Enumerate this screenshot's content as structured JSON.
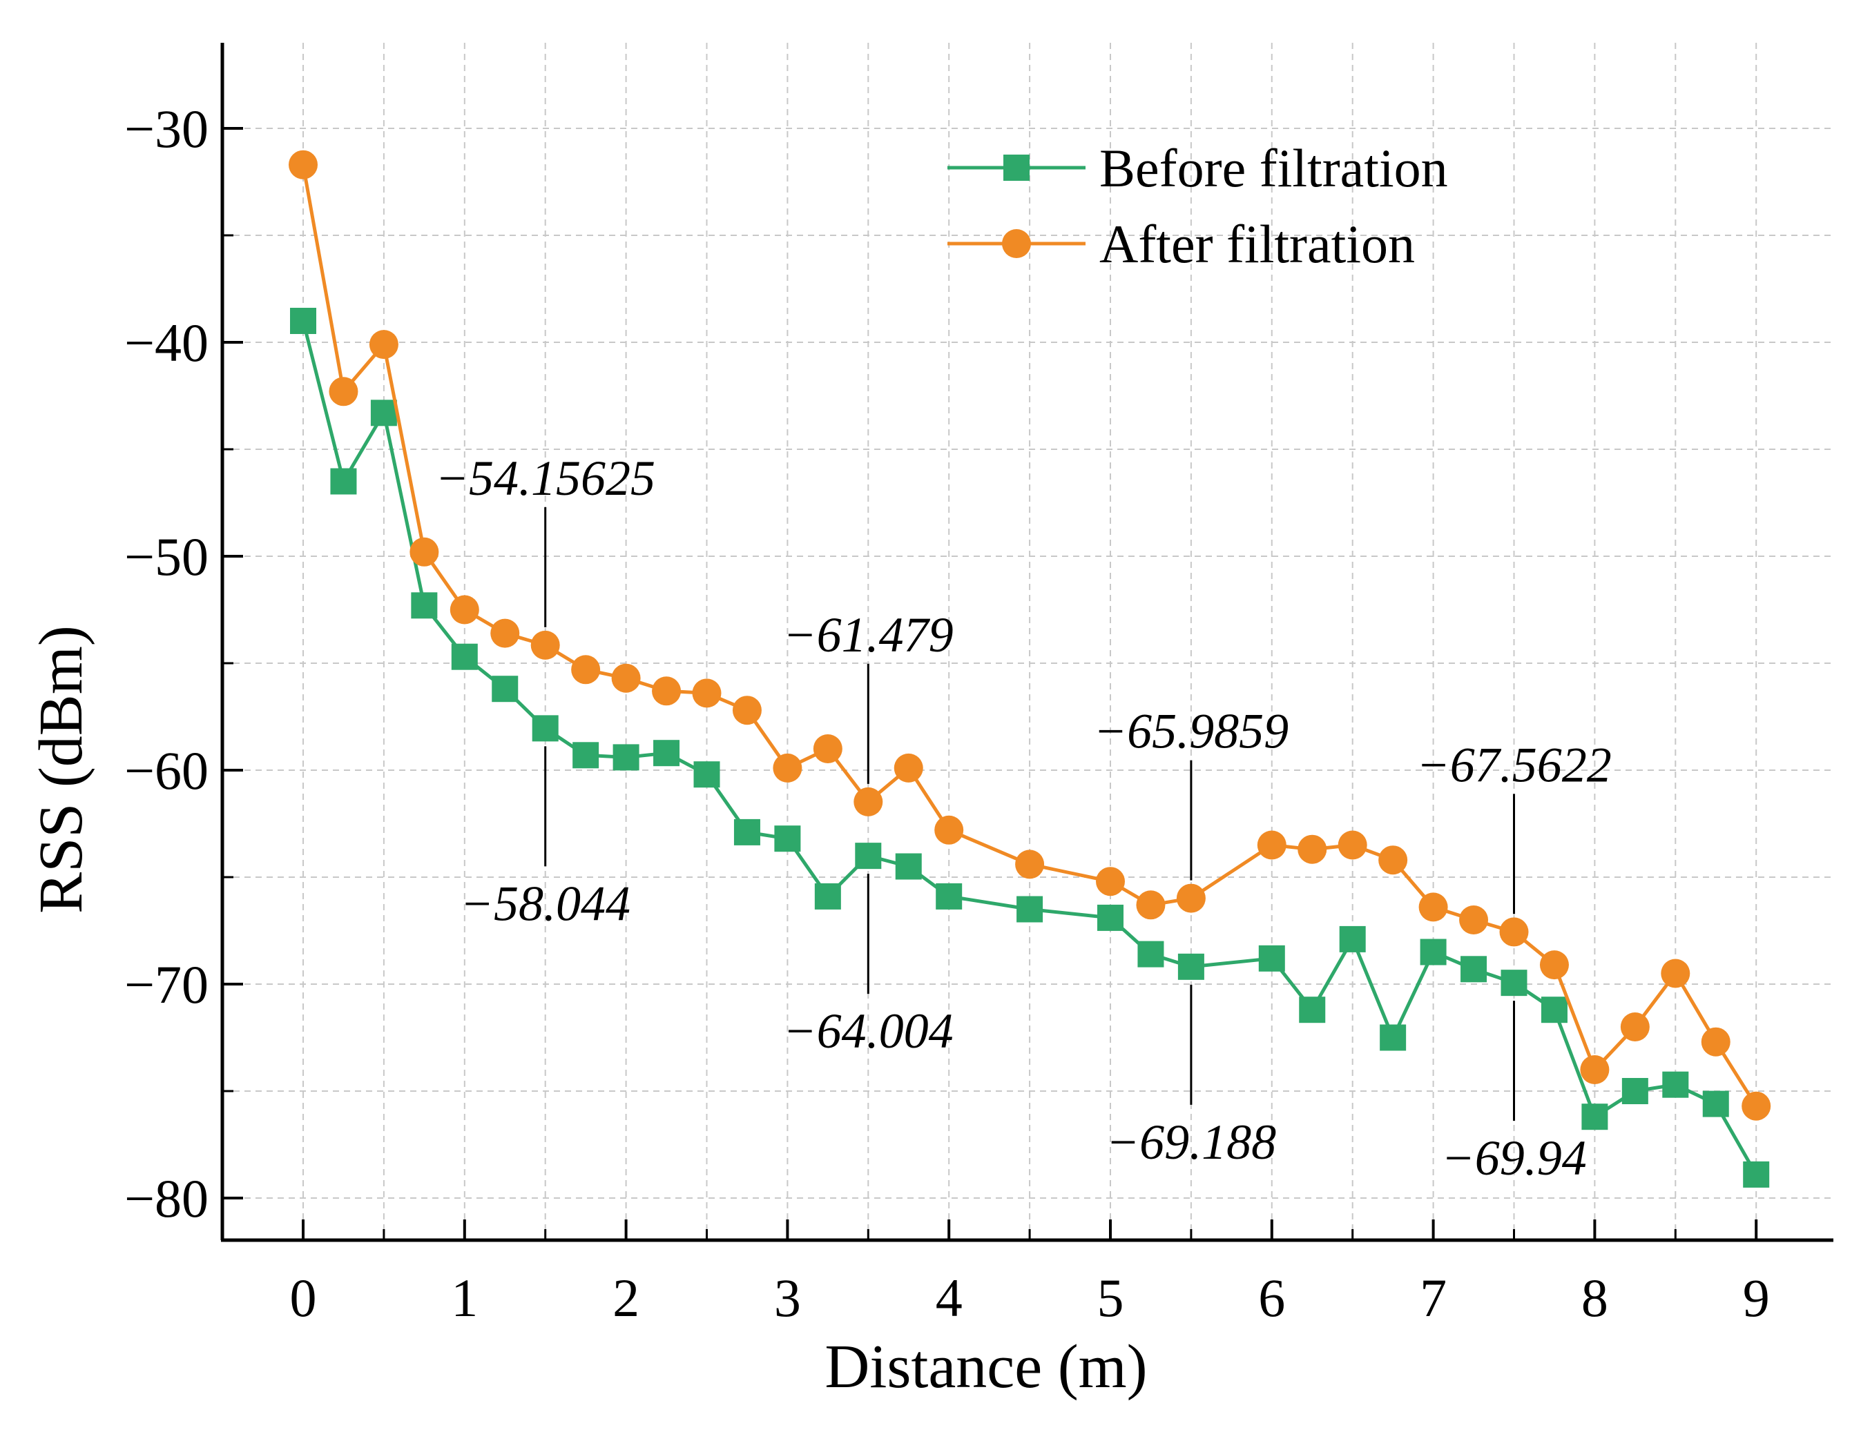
{
  "chart_data": {
    "type": "line",
    "xlabel": "Distance (m)",
    "ylabel": "RSS (dBm)",
    "xlim": [
      -0.5,
      9.5
    ],
    "ylim": [
      -82,
      -26
    ],
    "x_ticks": [
      0,
      1,
      2,
      3,
      4,
      5,
      6,
      7,
      8,
      9
    ],
    "x_tick_labels": [
      "0",
      "1",
      "2",
      "3",
      "4",
      "5",
      "6",
      "7",
      "8",
      "9"
    ],
    "y_ticks": [
      -80,
      -70,
      -60,
      -50,
      -40,
      -30
    ],
    "y_tick_labels": [
      "−80",
      "−70",
      "−60",
      "−50",
      "−40",
      "−30"
    ],
    "grid": true,
    "legend_position": "top-right",
    "x": [
      0,
      0.25,
      0.5,
      0.75,
      1,
      1.25,
      1.5,
      1.75,
      2,
      2.25,
      2.5,
      2.75,
      3,
      3.25,
      3.5,
      3.75,
      4,
      4.5,
      5,
      5.25,
      5.5,
      6,
      6.25,
      6.5,
      6.75,
      7,
      7.25,
      7.5,
      7.75,
      8,
      8.25,
      8.5,
      8.75,
      9
    ],
    "series": [
      {
        "name": "Before filtration",
        "marker": "square",
        "color": "#2ea86a",
        "values": [
          -39.0,
          -46.5,
          -43.3,
          -52.3,
          -54.7,
          -56.2,
          -58.044,
          -59.3,
          -59.4,
          -59.2,
          -60.2,
          -62.9,
          -63.2,
          -65.9,
          -64.004,
          -64.5,
          -65.9,
          -66.5,
          -66.9,
          -68.6,
          -69.188,
          -68.8,
          -71.2,
          -67.9,
          -72.5,
          -68.5,
          -69.3,
          -69.94,
          -71.2,
          -76.2,
          -75.0,
          -74.7,
          -75.6,
          -78.9
        ]
      },
      {
        "name": "After filtration",
        "marker": "circle",
        "color": "#f08a24",
        "values": [
          -31.7,
          -42.3,
          -40.1,
          -49.8,
          -52.5,
          -53.6,
          -54.15625,
          -55.3,
          -55.7,
          -56.3,
          -56.4,
          -57.2,
          -59.9,
          -59.0,
          -61.479,
          -59.9,
          -62.8,
          -64.4,
          -65.2,
          -66.3,
          -65.9859,
          -63.5,
          -63.7,
          -63.5,
          -64.2,
          -66.4,
          -67.0,
          -67.5622,
          -69.1,
          -74.0,
          -72.0,
          -69.5,
          -72.7,
          -75.7
        ]
      }
    ],
    "annotations": [
      {
        "x": 1.5,
        "text": "−54.15625",
        "position": "above"
      },
      {
        "x": 1.5,
        "text": "−58.044",
        "position": "below"
      },
      {
        "x": 3.5,
        "text": "−61.479",
        "position": "above"
      },
      {
        "x": 3.5,
        "text": "−64.004",
        "position": "below"
      },
      {
        "x": 5.5,
        "text": "−65.9859",
        "position": "above"
      },
      {
        "x": 5.5,
        "text": "−69.188",
        "position": "below"
      },
      {
        "x": 7.5,
        "text": "−67.5622",
        "position": "above"
      },
      {
        "x": 7.5,
        "text": "−69.94",
        "position": "below"
      }
    ]
  }
}
